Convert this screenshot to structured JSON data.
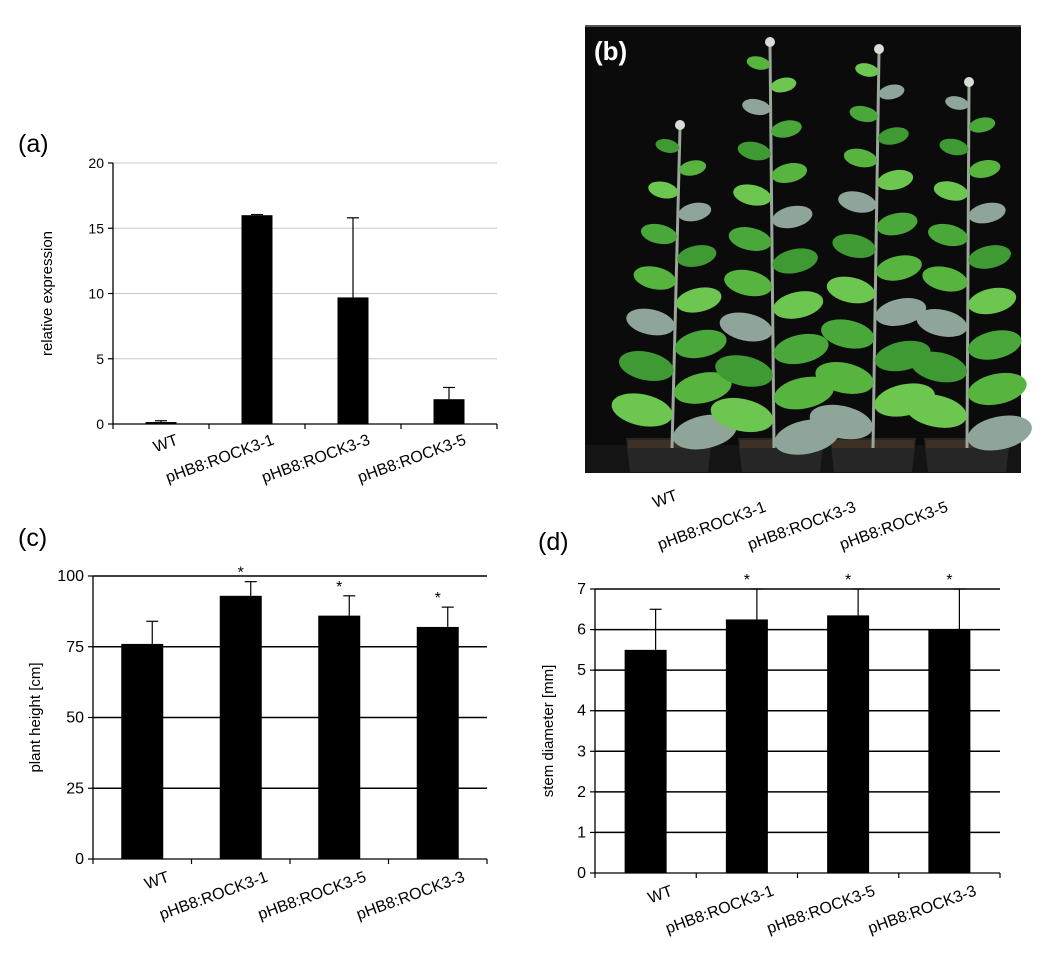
{
  "panels": {
    "a": "(a)",
    "b": "(b)",
    "c": "(c)",
    "d": "(d)"
  },
  "photo": {
    "labels": [
      "WT",
      "pHB8:ROCK3-1",
      "pHB8:ROCK3-3",
      "pHB8:ROCK3-5"
    ]
  },
  "chart_data": [
    {
      "type": "bar",
      "categories": [
        "WT",
        "pHB8:ROCK3-1",
        "pHB8:ROCK3-3",
        "pHB8:ROCK3-5"
      ],
      "values": [
        0.15,
        16.0,
        9.7,
        1.9
      ],
      "errors": [
        0.1,
        0.05,
        6.1,
        0.9
      ],
      "ylabel": "relative expression",
      "ylim": [
        0,
        20
      ],
      "yticks": [
        "0",
        "5",
        "10",
        "15",
        "20"
      ],
      "grid": true,
      "significance": [
        "",
        "",
        "",
        ""
      ]
    },
    {
      "type": "bar",
      "categories": [
        "WT",
        "pHB8:ROCK3-1",
        "pHB8:ROCK3-5",
        "pHB8:ROCK3-3"
      ],
      "values": [
        76,
        93,
        86,
        82
      ],
      "errors": [
        8,
        5,
        7,
        7
      ],
      "ylabel": "plant height  [cm]",
      "ylim": [
        0,
        100
      ],
      "yticks": [
        "0",
        "25",
        "50",
        "75",
        "100"
      ],
      "grid": true,
      "significance": [
        "",
        "*",
        "*",
        "*"
      ]
    },
    {
      "type": "bar",
      "categories": [
        "WT",
        "pHB8:ROCK3-1",
        "pHB8:ROCK3-5",
        "pHB8:ROCK3-3"
      ],
      "values": [
        5.5,
        6.25,
        6.35,
        6.0
      ],
      "errors": [
        1.0,
        0.75,
        0.65,
        1.0
      ],
      "ylabel": "stem diameter  [mm]",
      "ylim": [
        0,
        7
      ],
      "yticks": [
        "0",
        "1",
        "2",
        "3",
        "4",
        "5",
        "6",
        "7"
      ],
      "grid": true,
      "significance": [
        "",
        "*",
        "*",
        "*"
      ]
    }
  ]
}
